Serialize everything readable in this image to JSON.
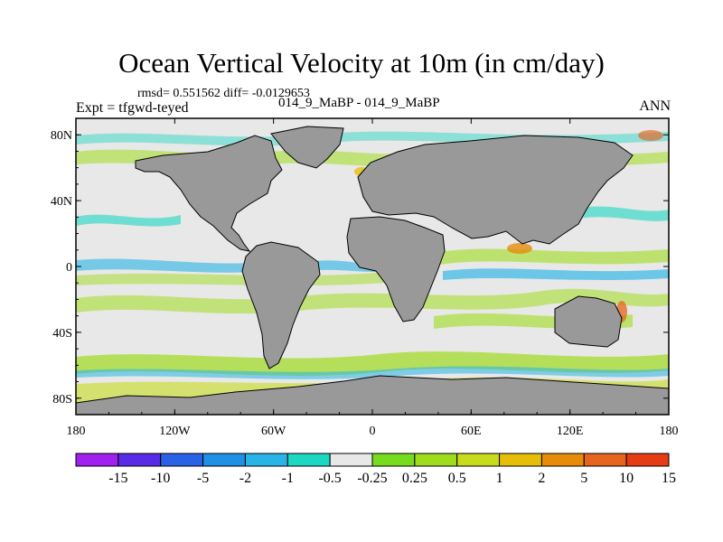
{
  "plot": {
    "title": "Ocean Vertical Velocity at 10m (in cm/day)",
    "stats": "rmsd= 0.551562 diff= -0.0129653",
    "left_label": "Expt = tfgwd-teyed",
    "center_label": "014_9_MaBP - 014_9_MaBP",
    "right_label": "ANN"
  },
  "map": {
    "projection": "cylindrical-equidistant",
    "lon_range": [
      -180,
      180
    ],
    "lat_range": [
      -90,
      90
    ],
    "x_ticks": [
      {
        "lon": -180,
        "label": "180"
      },
      {
        "lon": -120,
        "label": "120W"
      },
      {
        "lon": -60,
        "label": "60W"
      },
      {
        "lon": 0,
        "label": "0"
      },
      {
        "lon": 60,
        "label": "60E"
      },
      {
        "lon": 120,
        "label": "120E"
      },
      {
        "lon": 180,
        "label": "180"
      }
    ],
    "y_ticks": [
      {
        "lat": 80,
        "label": "80N"
      },
      {
        "lat": 40,
        "label": "40N"
      },
      {
        "lat": 0,
        "label": "0"
      },
      {
        "lat": -40,
        "label": "40S"
      },
      {
        "lat": -80,
        "label": "80S"
      }
    ],
    "land_color": "#999999",
    "ocean_background": "#e8e8e8"
  },
  "colorbar": {
    "colors": [
      "#a020f0",
      "#5a2be6",
      "#2a62e6",
      "#1e90e6",
      "#28b4e6",
      "#1ed7c3",
      "#e8e8e8",
      "#78dc1e",
      "#a0dc1e",
      "#c8dc1e",
      "#e6be0a",
      "#e68c0a",
      "#e6641e",
      "#e63c14"
    ],
    "labels": [
      "-15",
      "-10",
      "-5",
      "-2",
      "-1",
      "-0.5",
      "-0.25",
      "0.25",
      "0.5",
      "1",
      "2",
      "5",
      "10",
      "15"
    ]
  }
}
